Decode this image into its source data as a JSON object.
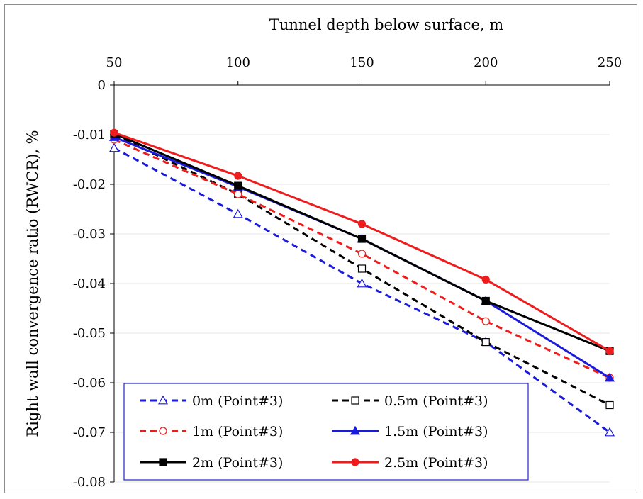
{
  "chart_data": {
    "type": "line",
    "xlabel": "Tunnel depth below surface, m",
    "ylabel": "Right wall convergence ratio (RWCR), %",
    "x": [
      50,
      100,
      150,
      200,
      250
    ],
    "x_ticks": [
      "50",
      "100",
      "150",
      "200",
      "250"
    ],
    "xlim": [
      50,
      250
    ],
    "ylim": [
      -0.08,
      0
    ],
    "y_ticks": [
      0,
      -0.01,
      -0.02,
      -0.03,
      -0.04,
      -0.05,
      -0.06,
      -0.07,
      -0.08
    ],
    "y_tick_labels": [
      "0",
      "-0.01",
      "-0.02",
      "-0.03",
      "-0.04",
      "-0.05",
      "-0.06",
      "-0.07",
      "-0.08"
    ],
    "x_axis_position": "top",
    "grid": "horizontal",
    "legend_position": "bottom-center",
    "series": [
      {
        "name": "0m (Point#3)",
        "values": [
          -0.0127,
          -0.026,
          -0.04,
          -0.0518,
          -0.07
        ],
        "color": "#1a1adb",
        "dash": true,
        "marker": "triangle-open"
      },
      {
        "name": "0.5m (Point#3)",
        "values": [
          -0.01,
          -0.022,
          -0.037,
          -0.0518,
          -0.0645
        ],
        "color": "#000000",
        "dash": true,
        "marker": "square-open"
      },
      {
        "name": "1m (Point#3)",
        "values": [
          -0.011,
          -0.022,
          -0.034,
          -0.0476,
          -0.059
        ],
        "color": "#ee1c1c",
        "dash": true,
        "marker": "circle-open"
      },
      {
        "name": "1.5m (Point#3)",
        "values": [
          -0.0105,
          -0.0205,
          -0.031,
          -0.0435,
          -0.059
        ],
        "color": "#1a1adb",
        "dash": false,
        "marker": "triangle-filled"
      },
      {
        "name": "2m (Point#3)",
        "values": [
          -0.0098,
          -0.0203,
          -0.031,
          -0.0435,
          -0.0536
        ],
        "color": "#000000",
        "dash": false,
        "marker": "square-filled"
      },
      {
        "name": "2.5m (Point#3)",
        "values": [
          -0.0096,
          -0.0183,
          -0.028,
          -0.0392,
          -0.0536
        ],
        "color": "#ee1c1c",
        "dash": false,
        "marker": "circle-filled"
      }
    ]
  }
}
